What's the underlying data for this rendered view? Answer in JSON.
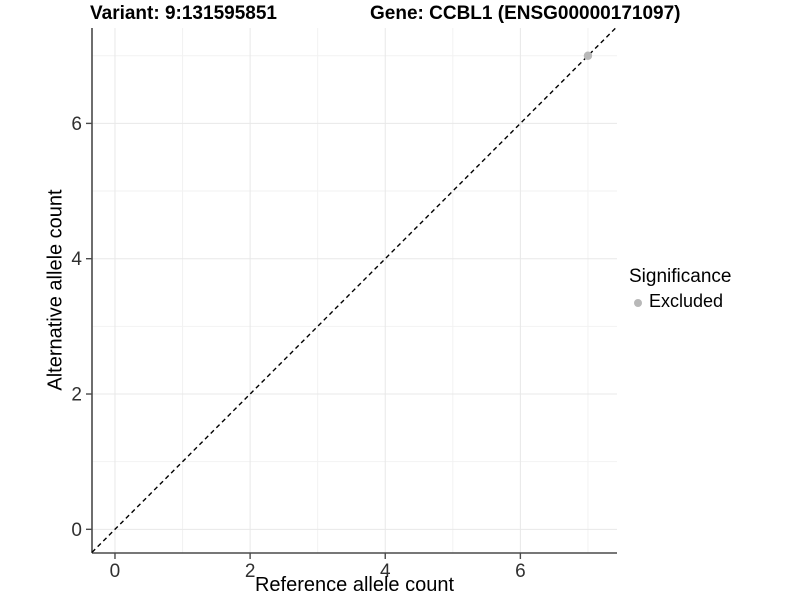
{
  "figure": {
    "title_left": "Variant: 9:131595851",
    "title_right": "Gene: CCBL1 (ENSG00000171097)"
  },
  "chart_data": {
    "type": "scatter",
    "xlabel": "Reference allele count",
    "ylabel": "Alternative allele count",
    "xlim": [
      -0.34,
      7.43
    ],
    "ylim": [
      -0.35,
      7.41
    ],
    "x_ticks": [
      0,
      2,
      4,
      6
    ],
    "y_ticks": [
      0,
      2,
      4,
      6
    ],
    "x_minor": [
      1,
      3,
      5,
      7
    ],
    "y_minor": [
      1,
      3,
      5,
      7
    ],
    "grid": "major+minor",
    "identity_line": {
      "slope": 1,
      "intercept": 0,
      "style": "dashed",
      "color": "#000000"
    },
    "series": [
      {
        "name": "Excluded",
        "color": "#b8b8b8",
        "points": [
          {
            "x": 7,
            "y": 7
          }
        ]
      }
    ],
    "legend": {
      "title": "Significance",
      "position": "right",
      "items": [
        {
          "label": "Excluded",
          "color": "#b8b8b8"
        }
      ]
    },
    "colors": {
      "grid_major": "#e8e8e8",
      "grid_minor": "#f2f2f2",
      "axis_line": "#4a4a4a",
      "tick_text": "#303030",
      "title_text": "#000000"
    }
  }
}
